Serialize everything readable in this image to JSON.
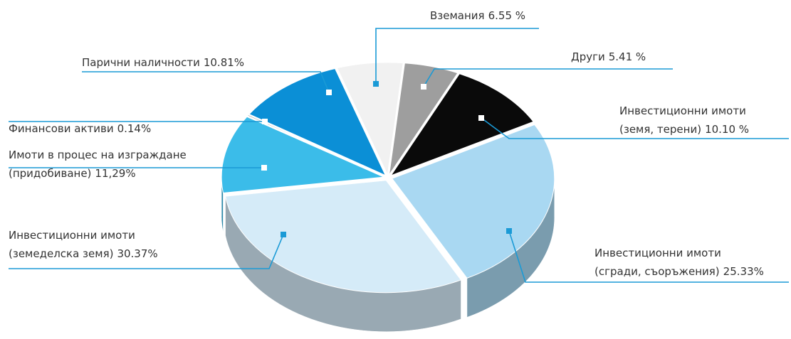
{
  "chart_data": {
    "type": "pie",
    "categories": [
      "Парични наличности",
      "Вземания",
      "Други",
      "Инвестиционни имоти\n(земя, терени)",
      "Инвестиционни имоти\n(сгради, съоръжения)",
      "Инвестиционни имоти\n(земеделска земя)",
      "Имоти в процес на изграждане\n(придобиване)",
      "Финансови активи"
    ],
    "values": [
      10.81,
      6.55,
      5.41,
      10.1,
      25.33,
      30.37,
      11.29,
      0.14
    ],
    "value_labels": [
      "10.81%",
      "6.55 %",
      "5.41 %",
      "10.10 %",
      "25.33%",
      "30.37%",
      "11,29%",
      "0.14%"
    ],
    "colors": [
      "#0b8fd6",
      "#f1f1f1",
      "#9e9e9e",
      "#0a0a0a",
      "#a9d8f2",
      "#d5ebf8",
      "#3bbce9",
      "#8a8a8a"
    ]
  }
}
